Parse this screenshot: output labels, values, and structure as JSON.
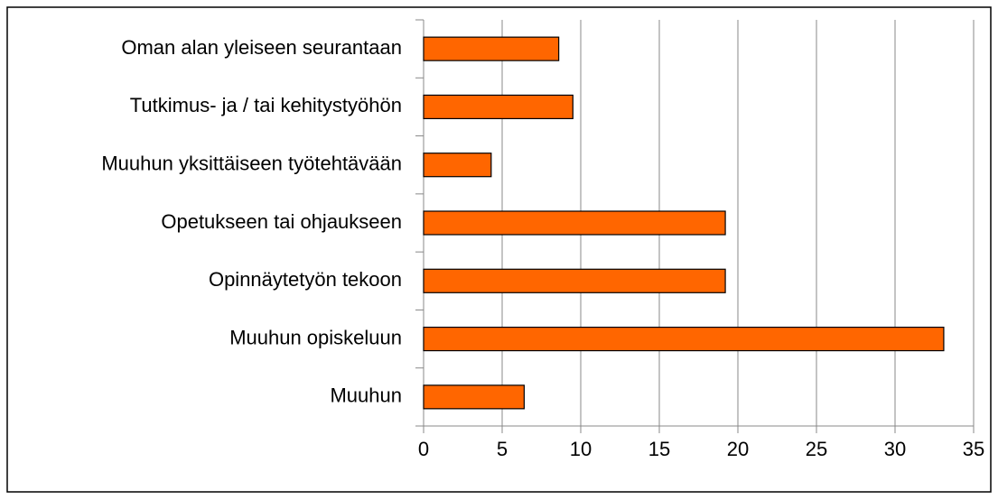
{
  "chart_data": {
    "type": "bar",
    "orientation": "horizontal",
    "categories": [
      "Oman alan yleiseen seurantaan",
      "Tutkimus- ja / tai kehitystyöhön",
      "Muuhun yksittäiseen työtehtävään",
      "Opetukseen tai ohjaukseen",
      "Opinnäytetyön tekoon",
      "Muuhun opiskeluun",
      "Muuhun"
    ],
    "values": [
      8.6,
      9.5,
      4.3,
      19.2,
      19.2,
      33.1,
      6.4
    ],
    "color": "#ff6600",
    "xlim": [
      0,
      35
    ],
    "xticks": [
      0,
      5,
      10,
      15,
      20,
      25,
      30,
      35
    ],
    "grid": true
  }
}
